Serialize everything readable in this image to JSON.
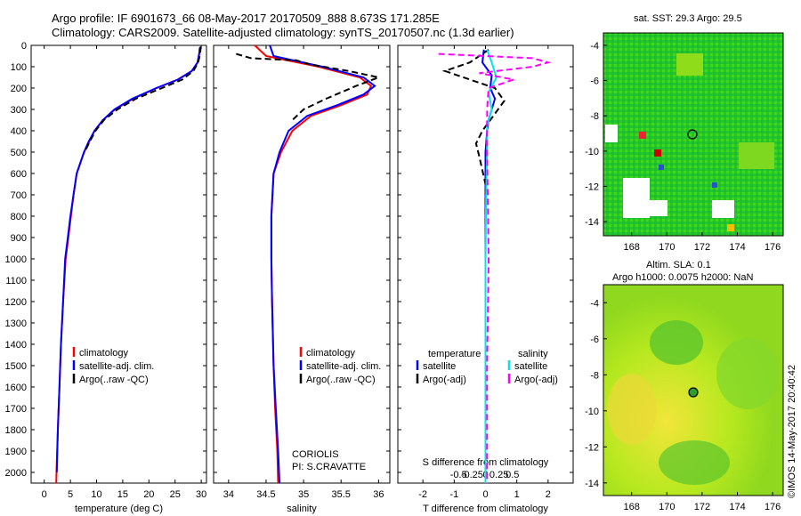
{
  "header": {
    "line1": "Argo profile: IF 6901673_66 08-May-2017 20170509_888 8.673S 171.285E",
    "line2": "Climatology: CARS2009. Satellite-adjusted climatology: synTS_20170507.nc (1.3d earlier)"
  },
  "depth_ticks": [
    "0",
    "100",
    "200",
    "300",
    "400",
    "500",
    "600",
    "700",
    "800",
    "900",
    "1000",
    "1100",
    "1200",
    "1300",
    "1400",
    "1500",
    "1600",
    "1700",
    "1800",
    "1900",
    "2000"
  ],
  "colors": {
    "climatology": "#ff0000",
    "satellite": "#0000ff",
    "argo": "#000000",
    "salinity_sat": "#00e5e5",
    "salinity_argo": "#ff00ff"
  },
  "chart_data": [
    {
      "id": "temperature",
      "type": "line",
      "xlabel": "temperature (deg C)",
      "xticks": [
        "0",
        "5",
        "10",
        "15",
        "20",
        "25",
        "30"
      ],
      "xlim": [
        -2.5,
        31
      ],
      "ylim": [
        2050,
        0
      ],
      "legend": {
        "placement": "lower-center",
        "entries": [
          "climatology",
          "satellite-adj. clim.",
          "Argo(..raw -QC)"
        ]
      },
      "series": [
        {
          "name": "climatology",
          "color": "red",
          "x": [
            29.7,
            29.6,
            29.3,
            28.2,
            25.5,
            21.5,
            17,
            13.5,
            11.2,
            9.6,
            8.6,
            7.6,
            6.9,
            6.2,
            5.6,
            5.1,
            4.6,
            4.1,
            3.6,
            3.2,
            2.9,
            2.6,
            2.4,
            2.3
          ],
          "y": [
            10,
            40,
            80,
            120,
            160,
            200,
            250,
            300,
            350,
            400,
            450,
            500,
            550,
            600,
            700,
            800,
            900,
            1000,
            1200,
            1400,
            1600,
            1800,
            1950,
            2050
          ]
        },
        {
          "name": "satellite-adj. clim.",
          "color": "blue",
          "x": [
            29.8,
            29.6,
            29.3,
            28.2,
            25.6,
            21.4,
            16.8,
            13.4,
            11.2,
            9.6,
            8.5,
            7.6,
            6.9,
            6.2,
            5.6,
            5.0,
            4.5,
            4.0,
            3.6,
            3.2,
            2.9,
            2.6,
            2.4
          ],
          "y": [
            10,
            40,
            80,
            120,
            160,
            200,
            250,
            300,
            350,
            400,
            450,
            500,
            550,
            600,
            700,
            800,
            900,
            1000,
            1200,
            1400,
            1600,
            1800,
            2000
          ]
        },
        {
          "name": "Argo(..raw -QC)",
          "color": "black",
          "dash": true,
          "x": [
            29.9,
            29.8,
            29.4,
            28.5,
            26.4,
            22.5,
            17.5,
            14,
            11.4,
            9.8,
            8.7,
            7.7
          ],
          "y": [
            5,
            40,
            80,
            120,
            160,
            200,
            250,
            300,
            350,
            400,
            450,
            500
          ]
        }
      ]
    },
    {
      "id": "salinity",
      "type": "line",
      "xlabel": "salinity",
      "xticks": [
        "34",
        "34.5",
        "35",
        "35.5",
        "36"
      ],
      "xticks_values": [
        34,
        34.5,
        35,
        35.5,
        36
      ],
      "xlim": [
        33.8,
        36.15
      ],
      "ylim": [
        2050,
        0
      ],
      "legend": {
        "placement": "lower-center",
        "entries": [
          "climatology",
          "satellite-adj. clim.",
          "Argo(..raw -QC)"
        ]
      },
      "annotation": [
        "CORIOLIS",
        "PI: S.CRAVATTE"
      ],
      "series": [
        {
          "name": "climatology",
          "color": "red",
          "x": [
            34.35,
            34.5,
            35.2,
            35.75,
            35.9,
            35.85,
            35.5,
            35.1,
            34.85,
            34.7,
            34.6,
            34.57,
            34.57,
            34.58,
            34.6,
            34.62,
            34.65,
            34.66
          ],
          "y": [
            0,
            50,
            100,
            150,
            190,
            230,
            280,
            330,
            400,
            500,
            600,
            800,
            1000,
            1200,
            1500,
            1700,
            1900,
            2050
          ]
        },
        {
          "name": "satellite-adj. clim.",
          "color": "blue",
          "x": [
            34.55,
            34.6,
            35.25,
            35.8,
            35.95,
            35.8,
            35.45,
            35.05,
            34.8,
            34.68,
            34.6,
            34.57,
            34.57,
            34.58,
            34.6,
            34.63,
            34.66,
            34.68
          ],
          "y": [
            0,
            50,
            100,
            150,
            190,
            230,
            280,
            330,
            400,
            500,
            600,
            800,
            1000,
            1200,
            1500,
            1700,
            1900,
            2050
          ]
        },
        {
          "name": "Argo(..raw -QC)",
          "color": "black",
          "dash": true,
          "x": [
            34.1,
            34.3,
            34.9,
            35.1,
            35.6,
            36.0,
            35.7,
            35.3,
            35.0,
            34.85
          ],
          "y": [
            40,
            60,
            70,
            90,
            120,
            150,
            190,
            250,
            300,
            350
          ]
        }
      ]
    },
    {
      "id": "differences",
      "type": "line",
      "xlabel": "T difference from climatology",
      "xlabel2": "S difference from climatology",
      "xticks": [
        "-2",
        "-1",
        "0",
        "1",
        "2"
      ],
      "xticks2": [
        "-0.5",
        "-0.25",
        "0",
        "0.25",
        "0.5"
      ],
      "xlim": [
        -2.8,
        2.8
      ],
      "ylim": [
        2050,
        0
      ],
      "legend": {
        "placement": "lower-center",
        "temperature_title": "temperature",
        "salinity_title": "salinity",
        "entries": [
          "satellite",
          "Argo(-adj)",
          "satellite",
          "Argo(-adj)"
        ]
      },
      "series": [
        {
          "name": "temperature satellite",
          "color": "blue",
          "x": [
            -0.05,
            -0.1,
            0.2,
            0.15,
            0.3,
            0.2,
            0.1,
            0.05,
            0,
            0,
            0,
            0,
            0,
            0
          ],
          "y": [
            20,
            80,
            140,
            200,
            250,
            300,
            350,
            400,
            500,
            700,
            1000,
            1400,
            1800,
            2050
          ]
        },
        {
          "name": "temperature Argo(-adj)",
          "color": "black",
          "dash": true,
          "x": [
            0.1,
            -0.5,
            -1.3,
            -0.5,
            0.3,
            0.6,
            0.3,
            -0.1,
            -0.3,
            -0.2,
            0,
            0,
            0,
            0
          ],
          "y": [
            20,
            80,
            120,
            160,
            200,
            260,
            320,
            400,
            460,
            520,
            650,
            1000,
            1500,
            2050
          ]
        },
        {
          "name": "salinity satellite",
          "color": "cyan",
          "x": [
            0.05,
            0.2,
            0.35,
            0.1,
            0.2,
            0.05,
            0.05,
            0.02,
            0,
            0,
            0
          ],
          "y": [
            20,
            80,
            150,
            220,
            300,
            380,
            500,
            700,
            1000,
            1500,
            2050
          ]
        },
        {
          "name": "salinity Argo(-adj)",
          "color": "magenta",
          "dash": true,
          "x": [
            -1.5,
            1.5,
            2.0,
            1.5,
            -0.2,
            0.9,
            0.1,
            0.05,
            0.05,
            0.1,
            0.05,
            0.05
          ],
          "y": [
            40,
            60,
            80,
            100,
            130,
            160,
            200,
            300,
            500,
            1000,
            1500,
            2050
          ]
        }
      ]
    }
  ],
  "maps": {
    "sst": {
      "title": "sat. SST: 29.3 Argo: 29.5",
      "yticks": [
        "-4",
        "-6",
        "-8",
        "-10",
        "-12",
        "-14"
      ],
      "xticks": [
        "168",
        "170",
        "172",
        "174",
        "176"
      ]
    },
    "sla": {
      "title_line1": "Altim. SLA: 0.1",
      "title_line2": "Argo h1000: 0.0075 h2000: NaN",
      "yticks": [
        "-4",
        "-6",
        "-8",
        "-10",
        "-12",
        "-14"
      ],
      "xticks": [
        "168",
        "170",
        "172",
        "174",
        "176"
      ]
    },
    "stamp": "©IMOS 14-May-2017 20:40:42"
  }
}
